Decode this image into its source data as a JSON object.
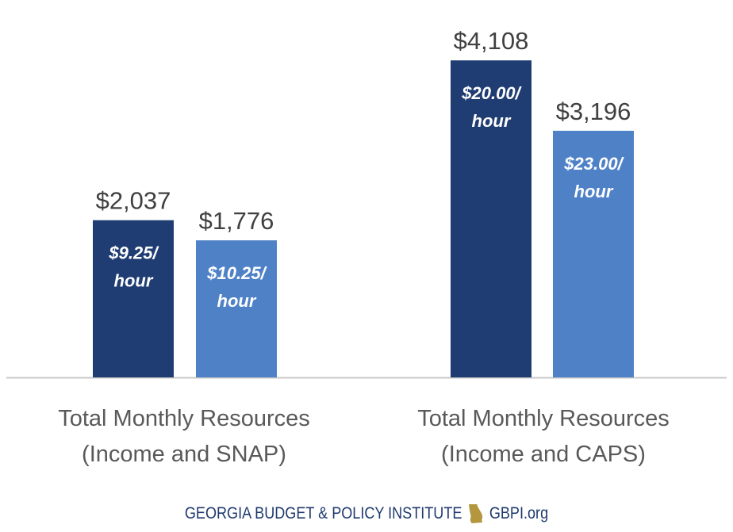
{
  "chart_data": {
    "type": "bar",
    "categories": [
      [
        "Total Monthly Resources",
        "(Income and SNAP)"
      ],
      [
        "Total Monthly Resources",
        "(Income and CAPS)"
      ]
    ],
    "ylim": [
      0,
      4500
    ],
    "grid": false,
    "legend": "none",
    "bars": [
      {
        "group": 0,
        "value": 2037,
        "value_label": "$2,037",
        "inner_label": [
          "$9.25/",
          "hour"
        ],
        "color": "#1f3d72"
      },
      {
        "group": 0,
        "value": 1776,
        "value_label": "$1,776",
        "inner_label": [
          "$10.25/",
          "hour"
        ],
        "color": "#4f81c7"
      },
      {
        "group": 1,
        "value": 4108,
        "value_label": "$4,108",
        "inner_label": [
          "$20.00/",
          "hour"
        ],
        "color": "#1f3d72"
      },
      {
        "group": 1,
        "value": 3196,
        "value_label": "$3,196",
        "inner_label": [
          "$23.00/",
          "hour"
        ],
        "color": "#4f81c7"
      }
    ]
  },
  "footer": {
    "org_name": "GEORGIA BUDGET & POLICY INSTITUTE",
    "website": "GBPI.org",
    "logo_icon": "georgia-state-icon",
    "logo_color": "#b3963e"
  }
}
